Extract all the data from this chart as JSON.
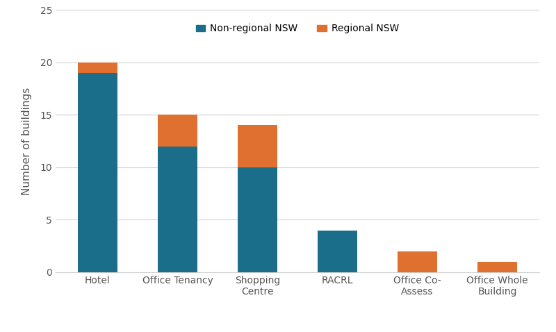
{
  "categories": [
    "Hotel",
    "Office Tenancy",
    "Shopping\nCentre",
    "RACRL",
    "Office Co-\nAssess",
    "Office Whole\nBuilding"
  ],
  "non_regional": [
    19,
    12,
    10,
    4,
    0,
    0
  ],
  "regional": [
    1,
    3,
    4,
    0,
    2,
    1
  ],
  "color_non_regional": "#1a6e8a",
  "color_regional": "#e07030",
  "ylabel": "Number of buildings",
  "ylim": [
    0,
    25
  ],
  "yticks": [
    0,
    5,
    10,
    15,
    20,
    25
  ],
  "legend_non_regional": "Non-regional NSW",
  "legend_regional": "Regional NSW",
  "background_color": "#ffffff",
  "grid_color": "#d0d0d0",
  "bar_width": 0.5
}
